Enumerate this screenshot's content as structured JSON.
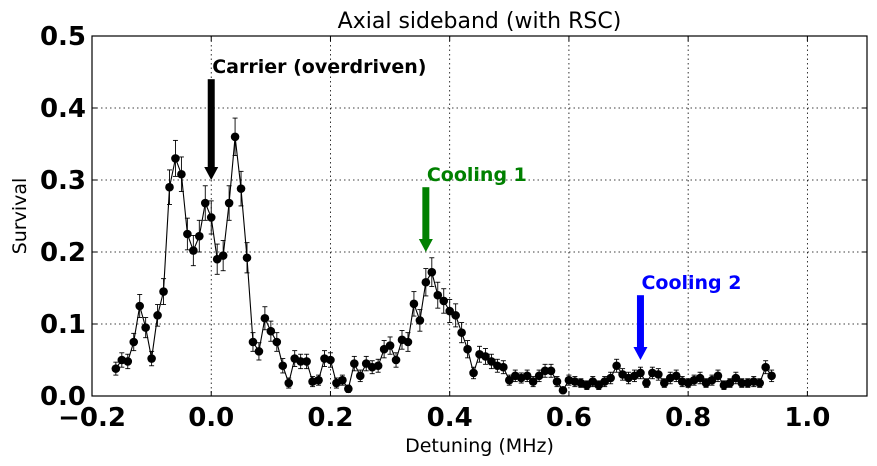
{
  "chart_data": {
    "type": "scatter",
    "title": "Axial sideband (with RSC)",
    "xlabel": "Detuning (MHz)",
    "ylabel": "Survival",
    "xlim": [
      -0.2,
      1.1
    ],
    "ylim": [
      0.0,
      0.5
    ],
    "xticks": [
      "−0.2",
      "0.0",
      "0.2",
      "0.4",
      "0.6",
      "0.8",
      "1.0"
    ],
    "yticks": [
      "0.0",
      "0.1",
      "0.2",
      "0.3",
      "0.4",
      "0.5"
    ],
    "xtick_values": [
      -0.2,
      0.0,
      0.2,
      0.4,
      0.6,
      0.8,
      1.0
    ],
    "ytick_values": [
      0.0,
      0.1,
      0.2,
      0.3,
      0.4,
      0.5
    ],
    "grid": true,
    "series_color": "#000000",
    "series": [
      {
        "x": [
          -0.16,
          -0.15,
          -0.14,
          -0.13,
          -0.12,
          -0.11,
          -0.1,
          -0.09,
          -0.08,
          -0.07,
          -0.06,
          -0.05,
          -0.04,
          -0.03,
          -0.02,
          -0.01,
          0.0,
          0.01,
          0.02,
          0.03,
          0.04,
          0.05,
          0.06,
          0.07,
          0.08,
          0.09,
          0.1,
          0.11,
          0.12,
          0.13,
          0.14,
          0.15,
          0.16,
          0.17,
          0.18,
          0.19,
          0.2,
          0.21,
          0.22,
          0.23,
          0.24,
          0.25,
          0.26,
          0.27,
          0.28,
          0.29,
          0.3,
          0.31,
          0.32,
          0.33,
          0.34,
          0.35,
          0.36,
          0.37,
          0.38,
          0.39,
          0.4,
          0.41,
          0.42,
          0.43,
          0.44,
          0.45,
          0.46,
          0.47,
          0.48,
          0.49,
          0.5,
          0.51,
          0.52,
          0.53,
          0.54,
          0.55,
          0.56,
          0.57,
          0.58,
          0.59,
          0.6,
          0.61,
          0.62,
          0.63,
          0.64,
          0.65,
          0.66,
          0.67,
          0.68,
          0.69,
          0.7,
          0.71,
          0.72,
          0.73,
          0.74,
          0.75,
          0.76,
          0.77,
          0.78,
          0.79,
          0.8,
          0.81,
          0.82,
          0.83,
          0.84,
          0.85,
          0.86,
          0.87,
          0.88,
          0.89,
          0.9,
          0.91,
          0.92,
          0.93,
          0.94
        ],
        "y": [
          0.038,
          0.05,
          0.048,
          0.075,
          0.125,
          0.095,
          0.052,
          0.112,
          0.145,
          0.29,
          0.33,
          0.308,
          0.225,
          0.202,
          0.222,
          0.268,
          0.248,
          0.19,
          0.195,
          0.268,
          0.36,
          0.288,
          0.192,
          0.075,
          0.062,
          0.108,
          0.09,
          0.075,
          0.042,
          0.018,
          0.052,
          0.048,
          0.048,
          0.02,
          0.022,
          0.052,
          0.05,
          0.018,
          0.022,
          0.01,
          0.045,
          0.028,
          0.045,
          0.04,
          0.042,
          0.065,
          0.07,
          0.05,
          0.078,
          0.075,
          0.128,
          0.105,
          0.158,
          0.172,
          0.14,
          0.132,
          0.118,
          0.112,
          0.088,
          0.065,
          0.032,
          0.058,
          0.055,
          0.048,
          0.042,
          0.04,
          0.022,
          0.028,
          0.025,
          0.028,
          0.02,
          0.028,
          0.035,
          0.035,
          0.02,
          0.008,
          0.022,
          0.02,
          0.018,
          0.015,
          0.02,
          0.015,
          0.02,
          0.025,
          0.042,
          0.03,
          0.025,
          0.028,
          0.032,
          0.018,
          0.032,
          0.03,
          0.018,
          0.025,
          0.028,
          0.02,
          0.018,
          0.022,
          0.025,
          0.018,
          0.022,
          0.028,
          0.015,
          0.018,
          0.025,
          0.018,
          0.018,
          0.02,
          0.018,
          0.04,
          0.028
        ],
        "yerr": [
          0.009,
          0.01,
          0.01,
          0.012,
          0.016,
          0.014,
          0.01,
          0.015,
          0.018,
          0.024,
          0.025,
          0.024,
          0.022,
          0.021,
          0.022,
          0.024,
          0.023,
          0.021,
          0.021,
          0.024,
          0.026,
          0.024,
          0.021,
          0.013,
          0.012,
          0.016,
          0.014,
          0.013,
          0.01,
          0.007,
          0.011,
          0.01,
          0.01,
          0.007,
          0.007,
          0.011,
          0.01,
          0.007,
          0.007,
          0.005,
          0.01,
          0.008,
          0.01,
          0.009,
          0.009,
          0.012,
          0.012,
          0.01,
          0.013,
          0.013,
          0.017,
          0.015,
          0.019,
          0.02,
          0.018,
          0.017,
          0.016,
          0.016,
          0.014,
          0.012,
          0.008,
          0.011,
          0.011,
          0.01,
          0.009,
          0.009,
          0.007,
          0.008,
          0.007,
          0.008,
          0.007,
          0.008,
          0.009,
          0.009,
          0.007,
          0.004,
          0.007,
          0.007,
          0.006,
          0.006,
          0.007,
          0.006,
          0.007,
          0.008,
          0.009,
          0.008,
          0.008,
          0.008,
          0.008,
          0.006,
          0.008,
          0.008,
          0.006,
          0.008,
          0.008,
          0.007,
          0.006,
          0.007,
          0.008,
          0.006,
          0.007,
          0.008,
          0.006,
          0.006,
          0.008,
          0.006,
          0.006,
          0.007,
          0.006,
          0.009,
          0.008
        ]
      }
    ],
    "annotations": [
      {
        "text": "Carrier (overdriven)",
        "color": "#000000",
        "arrow_x": 0.0,
        "arrow_from_y": 0.44,
        "arrow_to_y": 0.3
      },
      {
        "text": "Cooling 1",
        "color": "#008000",
        "arrow_x": 0.36,
        "arrow_from_y": 0.29,
        "arrow_to_y": 0.2
      },
      {
        "text": "Cooling 2",
        "color": "#0000ff",
        "arrow_x": 0.72,
        "arrow_from_y": 0.14,
        "arrow_to_y": 0.05
      }
    ]
  }
}
